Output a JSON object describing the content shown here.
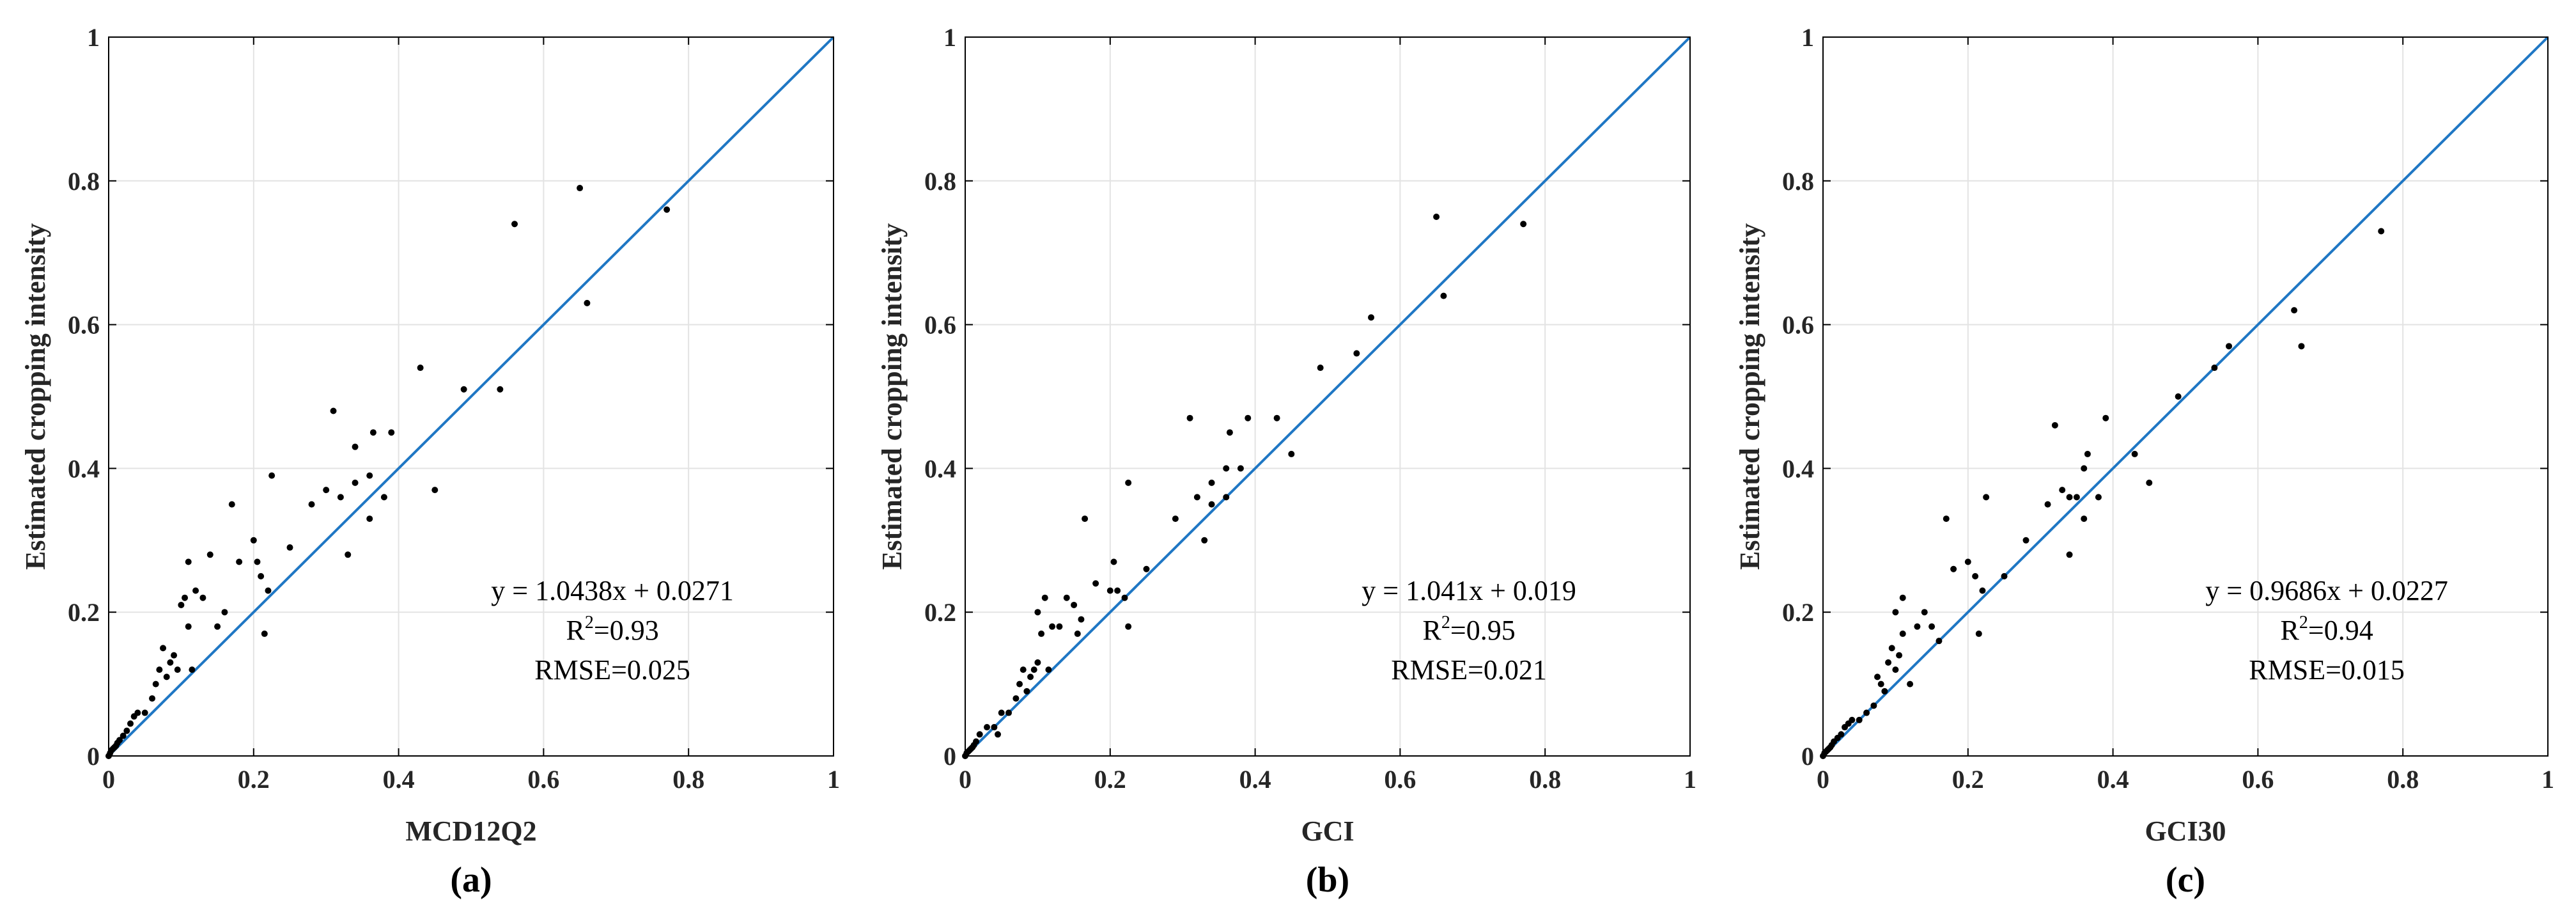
{
  "chart_data": [
    {
      "type": "scatter",
      "panel_label": "(a)",
      "xlabel": "MCD12Q2",
      "ylabel": "Estimated cropping intensity",
      "xlim": [
        0,
        1
      ],
      "ylim": [
        0,
        1
      ],
      "xticks": [
        "0",
        "0.2",
        "0.4",
        "0.6",
        "0.8",
        "1"
      ],
      "yticks": [
        "0",
        "0.2",
        "0.4",
        "0.6",
        "0.8",
        "1"
      ],
      "grid": true,
      "reference_line": "y = x",
      "annotation": {
        "equation": "y = 1.0438x + 0.0271",
        "r2_prefix": "R",
        "r2_sup": "2",
        "r2_value": "=0.93",
        "rmse": "RMSE=0.025"
      },
      "points": [
        [
          0.0,
          0.0
        ],
        [
          0.002,
          0.004
        ],
        [
          0.004,
          0.008
        ],
        [
          0.006,
          0.01
        ],
        [
          0.008,
          0.012
        ],
        [
          0.01,
          0.014
        ],
        [
          0.012,
          0.018
        ],
        [
          0.015,
          0.022
        ],
        [
          0.02,
          0.028
        ],
        [
          0.025,
          0.035
        ],
        [
          0.03,
          0.045
        ],
        [
          0.035,
          0.055
        ],
        [
          0.04,
          0.06
        ],
        [
          0.05,
          0.06
        ],
        [
          0.06,
          0.08
        ],
        [
          0.065,
          0.1
        ],
        [
          0.07,
          0.12
        ],
        [
          0.075,
          0.15
        ],
        [
          0.08,
          0.11
        ],
        [
          0.085,
          0.13
        ],
        [
          0.09,
          0.14
        ],
        [
          0.095,
          0.12
        ],
        [
          0.1,
          0.21
        ],
        [
          0.105,
          0.22
        ],
        [
          0.11,
          0.18
        ],
        [
          0.11,
          0.27
        ],
        [
          0.115,
          0.12
        ],
        [
          0.12,
          0.23
        ],
        [
          0.13,
          0.22
        ],
        [
          0.14,
          0.28
        ],
        [
          0.15,
          0.18
        ],
        [
          0.16,
          0.2
        ],
        [
          0.17,
          0.35
        ],
        [
          0.18,
          0.27
        ],
        [
          0.2,
          0.3
        ],
        [
          0.205,
          0.27
        ],
        [
          0.21,
          0.25
        ],
        [
          0.215,
          0.17
        ],
        [
          0.22,
          0.23
        ],
        [
          0.225,
          0.39
        ],
        [
          0.25,
          0.29
        ],
        [
          0.28,
          0.35
        ],
        [
          0.3,
          0.37
        ],
        [
          0.31,
          0.48
        ],
        [
          0.32,
          0.36
        ],
        [
          0.33,
          0.28
        ],
        [
          0.34,
          0.38
        ],
        [
          0.34,
          0.43
        ],
        [
          0.36,
          0.39
        ],
        [
          0.36,
          0.33
        ],
        [
          0.365,
          0.45
        ],
        [
          0.38,
          0.36
        ],
        [
          0.39,
          0.45
        ],
        [
          0.43,
          0.54
        ],
        [
          0.45,
          0.37
        ],
        [
          0.49,
          0.51
        ],
        [
          0.54,
          0.51
        ],
        [
          0.56,
          0.74
        ],
        [
          0.65,
          0.79
        ],
        [
          0.66,
          0.63
        ],
        [
          0.77,
          0.76
        ]
      ]
    },
    {
      "type": "scatter",
      "panel_label": "(b)",
      "xlabel": "GCI",
      "ylabel": "Estimated cropping intensity",
      "xlim": [
        0,
        1
      ],
      "ylim": [
        0,
        1
      ],
      "xticks": [
        "0",
        "0.2",
        "0.4",
        "0.6",
        "0.8",
        "1"
      ],
      "yticks": [
        "0",
        "0.2",
        "0.4",
        "0.6",
        "0.8",
        "1"
      ],
      "grid": true,
      "reference_line": "y = x",
      "annotation": {
        "equation": "y = 1.041x + 0.019",
        "r2_prefix": "R",
        "r2_sup": "2",
        "r2_value": "=0.95",
        "rmse": "RMSE=0.021"
      },
      "points": [
        [
          0.0,
          0.0
        ],
        [
          0.002,
          0.004
        ],
        [
          0.004,
          0.006
        ],
        [
          0.006,
          0.008
        ],
        [
          0.008,
          0.01
        ],
        [
          0.01,
          0.012
        ],
        [
          0.012,
          0.015
        ],
        [
          0.015,
          0.02
        ],
        [
          0.02,
          0.03
        ],
        [
          0.03,
          0.04
        ],
        [
          0.04,
          0.04
        ],
        [
          0.045,
          0.03
        ],
        [
          0.05,
          0.06
        ],
        [
          0.06,
          0.06
        ],
        [
          0.07,
          0.08
        ],
        [
          0.075,
          0.1
        ],
        [
          0.08,
          0.12
        ],
        [
          0.085,
          0.09
        ],
        [
          0.09,
          0.11
        ],
        [
          0.095,
          0.12
        ],
        [
          0.1,
          0.13
        ],
        [
          0.1,
          0.2
        ],
        [
          0.105,
          0.17
        ],
        [
          0.11,
          0.22
        ],
        [
          0.115,
          0.12
        ],
        [
          0.12,
          0.18
        ],
        [
          0.13,
          0.18
        ],
        [
          0.14,
          0.22
        ],
        [
          0.15,
          0.21
        ],
        [
          0.155,
          0.17
        ],
        [
          0.16,
          0.19
        ],
        [
          0.165,
          0.33
        ],
        [
          0.18,
          0.24
        ],
        [
          0.2,
          0.23
        ],
        [
          0.205,
          0.27
        ],
        [
          0.21,
          0.23
        ],
        [
          0.22,
          0.22
        ],
        [
          0.225,
          0.38
        ],
        [
          0.225,
          0.18
        ],
        [
          0.25,
          0.26
        ],
        [
          0.29,
          0.33
        ],
        [
          0.31,
          0.47
        ],
        [
          0.32,
          0.36
        ],
        [
          0.33,
          0.3
        ],
        [
          0.34,
          0.35
        ],
        [
          0.34,
          0.38
        ],
        [
          0.36,
          0.36
        ],
        [
          0.36,
          0.4
        ],
        [
          0.365,
          0.45
        ],
        [
          0.38,
          0.4
        ],
        [
          0.39,
          0.47
        ],
        [
          0.43,
          0.47
        ],
        [
          0.45,
          0.42
        ],
        [
          0.49,
          0.54
        ],
        [
          0.54,
          0.56
        ],
        [
          0.56,
          0.61
        ],
        [
          0.65,
          0.75
        ],
        [
          0.66,
          0.64
        ],
        [
          0.77,
          0.74
        ]
      ]
    },
    {
      "type": "scatter",
      "panel_label": "(c)",
      "xlabel": "GCI30",
      "ylabel": "Estimated cropping intensity",
      "xlim": [
        0,
        1
      ],
      "ylim": [
        0,
        1
      ],
      "xticks": [
        "0",
        "0.2",
        "0.4",
        "0.6",
        "0.8",
        "1"
      ],
      "yticks": [
        "0",
        "0.2",
        "0.4",
        "0.6",
        "0.8",
        "1"
      ],
      "grid": true,
      "reference_line": "y = x",
      "annotation": {
        "equation": "y = 0.9686x + 0.0227",
        "r2_prefix": "R",
        "r2_sup": "2",
        "r2_value": "=0.94",
        "rmse": "RMSE=0.015"
      },
      "points": [
        [
          0.0,
          0.0
        ],
        [
          0.002,
          0.004
        ],
        [
          0.004,
          0.006
        ],
        [
          0.006,
          0.008
        ],
        [
          0.008,
          0.01
        ],
        [
          0.01,
          0.012
        ],
        [
          0.012,
          0.015
        ],
        [
          0.015,
          0.02
        ],
        [
          0.02,
          0.025
        ],
        [
          0.025,
          0.03
        ],
        [
          0.03,
          0.04
        ],
        [
          0.035,
          0.045
        ],
        [
          0.04,
          0.05
        ],
        [
          0.05,
          0.05
        ],
        [
          0.06,
          0.06
        ],
        [
          0.07,
          0.07
        ],
        [
          0.075,
          0.11
        ],
        [
          0.08,
          0.1
        ],
        [
          0.085,
          0.09
        ],
        [
          0.09,
          0.13
        ],
        [
          0.095,
          0.15
        ],
        [
          0.1,
          0.12
        ],
        [
          0.1,
          0.2
        ],
        [
          0.105,
          0.14
        ],
        [
          0.11,
          0.17
        ],
        [
          0.11,
          0.22
        ],
        [
          0.12,
          0.1
        ],
        [
          0.13,
          0.18
        ],
        [
          0.14,
          0.2
        ],
        [
          0.15,
          0.18
        ],
        [
          0.16,
          0.16
        ],
        [
          0.17,
          0.33
        ],
        [
          0.18,
          0.26
        ],
        [
          0.2,
          0.27
        ],
        [
          0.21,
          0.25
        ],
        [
          0.215,
          0.17
        ],
        [
          0.22,
          0.23
        ],
        [
          0.225,
          0.36
        ],
        [
          0.25,
          0.25
        ],
        [
          0.28,
          0.3
        ],
        [
          0.31,
          0.35
        ],
        [
          0.32,
          0.46
        ],
        [
          0.33,
          0.37
        ],
        [
          0.34,
          0.36
        ],
        [
          0.34,
          0.28
        ],
        [
          0.35,
          0.36
        ],
        [
          0.36,
          0.4
        ],
        [
          0.36,
          0.33
        ],
        [
          0.365,
          0.42
        ],
        [
          0.38,
          0.36
        ],
        [
          0.39,
          0.47
        ],
        [
          0.43,
          0.42
        ],
        [
          0.45,
          0.38
        ],
        [
          0.49,
          0.5
        ],
        [
          0.54,
          0.54
        ],
        [
          0.56,
          0.57
        ],
        [
          0.65,
          0.62
        ],
        [
          0.66,
          0.57
        ],
        [
          0.77,
          0.73
        ]
      ]
    }
  ]
}
